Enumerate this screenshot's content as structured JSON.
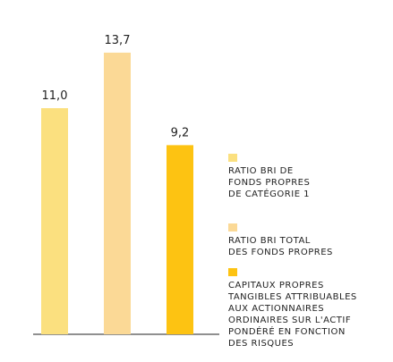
{
  "chart_data": {
    "type": "bar",
    "categories": [
      null,
      null,
      null
    ],
    "series": [
      {
        "name": "RATIO BRI DE\nFONDS PROPRES\nDE CATÉGORIE 1",
        "color": "#fbe07f",
        "values": [
          11.0,
          null,
          null
        ],
        "value_labels": [
          "11,0",
          null,
          null
        ]
      },
      {
        "name": "RATIO BRI TOTAL\nDES FONDS PROPRES",
        "color": "#fbd996",
        "values": [
          null,
          13.7,
          null
        ],
        "value_labels": [
          null,
          "13,7",
          null
        ]
      },
      {
        "name": "CAPITAUX PROPRES\nTANGIBLES ATTRIBUABLES\nAUX ACTIONNAIRES\nORDINAIRES SUR L'ACTIF\nPONDÉRÉ EN FONCTION\nDES RISQUES",
        "color": "#fdc312",
        "values": [
          null,
          null,
          9.2
        ],
        "value_labels": [
          null,
          null,
          "9,2"
        ]
      }
    ]
  }
}
